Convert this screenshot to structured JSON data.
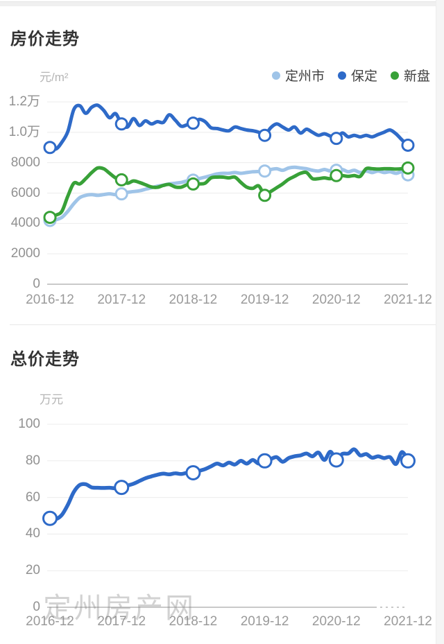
{
  "page": {
    "watermark_text": "定州房产网"
  },
  "chart_data": [
    {
      "type": "line",
      "title": "房价走势",
      "ylabel": "元/m²",
      "ylim": [
        0,
        12000
      ],
      "grid": true,
      "legend_position": "top-right",
      "x_tick_labels": [
        "2016-12",
        "2017-12",
        "2018-12",
        "2019-12",
        "2020-12",
        "2021-12"
      ],
      "x_tick_indices": [
        0,
        12,
        24,
        36,
        48,
        60
      ],
      "marker_indices": [
        0,
        12,
        24,
        36,
        48,
        60
      ],
      "x_note": "monthly points from 2016-12 to 2021-12 (61 points)",
      "y_ticks": [
        {
          "value": 0,
          "label": "0"
        },
        {
          "value": 2000,
          "label": "2000"
        },
        {
          "value": 4000,
          "label": "4000"
        },
        {
          "value": 6000,
          "label": "6000"
        },
        {
          "value": 8000,
          "label": "8000"
        },
        {
          "value": 10000,
          "label": "1.0万"
        },
        {
          "value": 12000,
          "label": "1.2万"
        }
      ],
      "series": [
        {
          "name": "定州市",
          "key": "dingzhou-city",
          "color": "#9fc4e8",
          "values": [
            4200,
            4250,
            4400,
            4800,
            5300,
            5700,
            5850,
            5900,
            5850,
            5900,
            5950,
            5900,
            5950,
            6050,
            6100,
            6150,
            6250,
            6350,
            6450,
            6520,
            6600,
            6650,
            6700,
            6800,
            6850,
            6950,
            7050,
            7150,
            7260,
            7300,
            7300,
            7350,
            7300,
            7350,
            7400,
            7420,
            7450,
            7550,
            7600,
            7500,
            7650,
            7700,
            7650,
            7600,
            7500,
            7450,
            7550,
            7450,
            7500,
            7550,
            7400,
            7500,
            7350,
            7450,
            7350,
            7450,
            7350,
            7400,
            7300,
            7400,
            7200
          ]
        },
        {
          "name": "保定",
          "key": "baoding",
          "color": "#2e6ac8",
          "values": [
            9000,
            8900,
            9350,
            10050,
            11500,
            11750,
            11250,
            11650,
            11780,
            11450,
            10960,
            11230,
            10550,
            10350,
            10900,
            10450,
            10750,
            10550,
            10700,
            10650,
            11150,
            10800,
            10400,
            10500,
            10600,
            10850,
            10700,
            10300,
            10250,
            10150,
            10100,
            10350,
            10250,
            10150,
            10100,
            10000,
            9800,
            10300,
            10550,
            10350,
            10150,
            10350,
            9950,
            10200,
            10000,
            9800,
            9900,
            9750,
            9600,
            9950,
            9700,
            9800,
            9700,
            9800,
            9700,
            9850,
            10000,
            10150,
            9900,
            9500,
            9150
          ]
        },
        {
          "name": "新盘",
          "key": "new-listings",
          "color": "#38a138",
          "values": [
            4400,
            4550,
            4800,
            5800,
            6650,
            6600,
            6950,
            7350,
            7650,
            7600,
            7300,
            7000,
            6870,
            6650,
            6800,
            6700,
            6550,
            6400,
            6380,
            6500,
            6570,
            6400,
            6390,
            6550,
            6600,
            6600,
            6650,
            7000,
            7050,
            7050,
            7000,
            7050,
            6700,
            6390,
            6310,
            6470,
            5850,
            6100,
            6350,
            6600,
            6900,
            7100,
            7300,
            7350,
            6950,
            6950,
            7000,
            6950,
            7150,
            7150,
            7100,
            7150,
            7100,
            7600,
            7600,
            7580,
            7600,
            7600,
            7580,
            7600,
            7650
          ]
        }
      ]
    },
    {
      "type": "line",
      "title": "总价走势",
      "ylabel": "万元",
      "ylim": [
        0,
        100
      ],
      "grid": true,
      "legend_position": "none",
      "x_tick_labels": [
        "2016-12",
        "2017-12",
        "2018-12",
        "2019-12",
        "2020-12",
        "2021-12"
      ],
      "x_tick_indices": [
        0,
        12,
        24,
        36,
        48,
        60
      ],
      "marker_indices": [
        0,
        12,
        24,
        36,
        48,
        60
      ],
      "x_note": "monthly points from 2016-12 to 2021-12 (61 points)",
      "y_ticks": [
        {
          "value": 0,
          "label": "0"
        },
        {
          "value": 20,
          "label": "20"
        },
        {
          "value": 40,
          "label": "40"
        },
        {
          "value": 60,
          "label": "60"
        },
        {
          "value": 80,
          "label": "80"
        },
        {
          "value": 100,
          "label": "100"
        }
      ],
      "series": [
        {
          "name": "总价",
          "key": "total-price",
          "color": "#2e6ac8",
          "values": [
            48.6,
            48.2,
            50.5,
            56,
            63,
            66.8,
            67.2,
            65.5,
            65.3,
            65.2,
            65.3,
            65,
            65.5,
            66.5,
            67.5,
            69,
            70.5,
            71.5,
            72.4,
            73,
            72.6,
            73.2,
            72.8,
            73.5,
            73.5,
            74.5,
            75.5,
            77,
            78.5,
            77.5,
            79,
            78,
            80,
            78.5,
            80.5,
            78.5,
            80,
            81,
            82,
            79.5,
            81.5,
            82.5,
            83,
            84,
            82.5,
            84.5,
            80.5,
            85,
            80.5,
            83.8,
            84,
            86.3,
            83,
            83.7,
            81.7,
            82.5,
            81.5,
            82,
            78.3,
            84.8,
            80
          ]
        }
      ]
    }
  ]
}
